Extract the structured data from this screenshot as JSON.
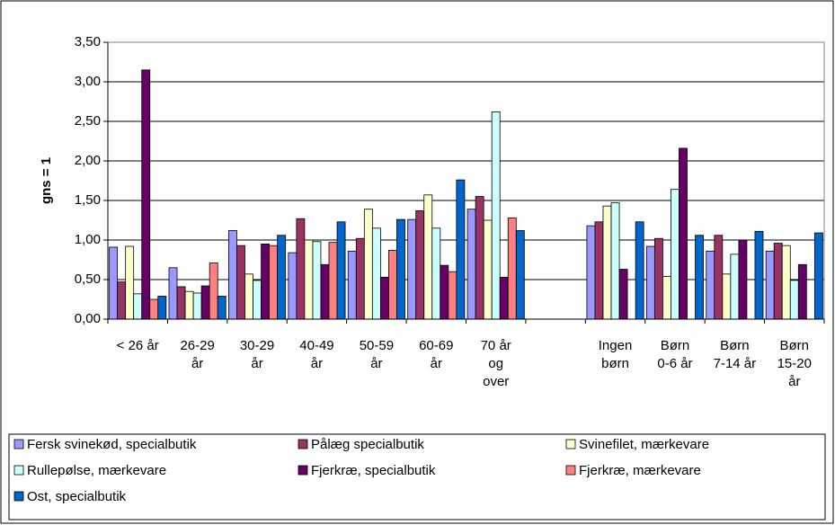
{
  "chart_data": {
    "type": "bar",
    "y_label": "gns = 1",
    "categories": [
      "< 26 år",
      "26-29 år",
      "30-29 år",
      "40-49 år",
      "50-59 år",
      "60-69 år",
      "70 år og over",
      null,
      "Ingen børn",
      "Børn 0-6 år",
      "Børn 7-14 år",
      "Børn 15-20 år"
    ],
    "series": [
      {
        "name": "Fersk svinekød, specialbutik",
        "color": "#9999ff",
        "values": [
          0.91,
          0.65,
          1.12,
          0.84,
          0.86,
          1.26,
          1.39,
          null,
          1.18,
          0.92,
          0.86,
          0.86
        ]
      },
      {
        "name": "Pålæg specialbutik",
        "color": "#993366",
        "values": [
          0.47,
          0.41,
          0.93,
          1.27,
          1.02,
          1.37,
          1.55,
          null,
          1.23,
          1.02,
          1.06,
          0.96
        ]
      },
      {
        "name": "Svinefilet, mærkevare",
        "color": "#ffffcc",
        "values": [
          0.92,
          0.35,
          0.57,
          1.0,
          1.39,
          1.57,
          1.25,
          null,
          1.43,
          0.54,
          0.57,
          0.93
        ]
      },
      {
        "name": "Rullepølse, mærkevare",
        "color": "#ccffff",
        "values": [
          0.32,
          0.33,
          0.49,
          0.98,
          1.15,
          1.15,
          2.62,
          null,
          1.47,
          1.64,
          0.82,
          0.49
        ]
      },
      {
        "name": "Fjerkræ, specialbutik",
        "color": "#660066",
        "values": [
          3.15,
          0.42,
          0.95,
          0.69,
          0.53,
          0.68,
          0.53,
          null,
          0.63,
          2.16,
          1.0,
          0.69
        ]
      },
      {
        "name": "Fjerkræ, mærkevare",
        "color": "#ff8080",
        "values": [
          0.25,
          0.71,
          0.93,
          0.97,
          0.87,
          0.6,
          1.28,
          null,
          null,
          null,
          null,
          null
        ]
      },
      {
        "name": "Ost, specialbutik",
        "color": "#0066cc",
        "values": [
          0.29,
          0.29,
          1.06,
          1.23,
          1.26,
          1.76,
          1.12,
          null,
          1.23,
          1.06,
          1.11,
          1.09
        ]
      }
    ],
    "ylim": [
      0,
      3.5
    ],
    "yticks": [
      {
        "value": 0,
        "label": "0,00"
      },
      {
        "value": 0.5,
        "label": "0,50"
      },
      {
        "value": 1,
        "label": "1,00"
      },
      {
        "value": 1.5,
        "label": "1,50"
      },
      {
        "value": 2,
        "label": "2,00"
      },
      {
        "value": 2.5,
        "label": "2,50"
      },
      {
        "value": 3,
        "label": "3,00"
      },
      {
        "value": 3.5,
        "label": "3,50"
      }
    ],
    "grid": true
  }
}
